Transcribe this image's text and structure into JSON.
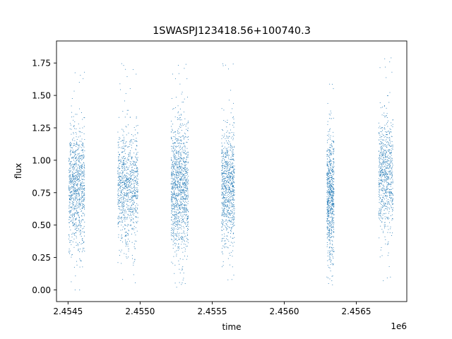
{
  "chart_data": {
    "type": "scatter",
    "title": "1SWASPJ123418.56+100740.3",
    "xlabel": "time",
    "ylabel": "flux",
    "x_offset_label": "1e6",
    "xlim": [
      2454420,
      2456850
    ],
    "ylim": [
      -0.09,
      1.92
    ],
    "x_ticks": [
      2454500,
      2455000,
      2455500,
      2456000,
      2456500
    ],
    "x_tick_labels": [
      "2.4545",
      "2.4550",
      "2.4555",
      "2.4560",
      "2.4565"
    ],
    "y_ticks": [
      0.0,
      0.25,
      0.5,
      0.75,
      1.0,
      1.25,
      1.5,
      1.75
    ],
    "y_tick_labels": [
      "0.00",
      "0.25",
      "0.50",
      "0.75",
      "1.00",
      "1.25",
      "1.50",
      "1.75"
    ],
    "grid": false,
    "marker_color": "#1f77b4",
    "series": [
      {
        "values_summary": "dense point clusters per observing season (time, flux)",
        "clusters": [
          {
            "x_range": [
              2454505,
              2454615
            ],
            "y_center": 0.78,
            "y_spread": 0.23,
            "y_range": [
              0.0,
              1.75
            ],
            "density": 1.0
          },
          {
            "x_range": [
              2454845,
              2454985
            ],
            "y_center": 0.78,
            "y_spread": 0.22,
            "y_range": [
              0.05,
              1.82
            ],
            "density": 1.0
          },
          {
            "x_range": [
              2455215,
              2455335
            ],
            "y_center": 0.78,
            "y_spread": 0.26,
            "y_range": [
              0.0,
              1.78
            ],
            "density": 1.3
          },
          {
            "x_range": [
              2455565,
              2455655
            ],
            "y_center": 0.8,
            "y_spread": 0.22,
            "y_range": [
              0.05,
              1.75
            ],
            "density": 0.9
          },
          {
            "x_range": [
              2456295,
              2456345
            ],
            "y_center": 0.72,
            "y_spread": 0.24,
            "y_range": [
              0.02,
              1.7
            ],
            "density": 0.8
          },
          {
            "x_range": [
              2456655,
              2456755
            ],
            "y_center": 0.88,
            "y_spread": 0.22,
            "y_range": [
              0.05,
              1.83
            ],
            "density": 0.8
          }
        ]
      }
    ]
  }
}
